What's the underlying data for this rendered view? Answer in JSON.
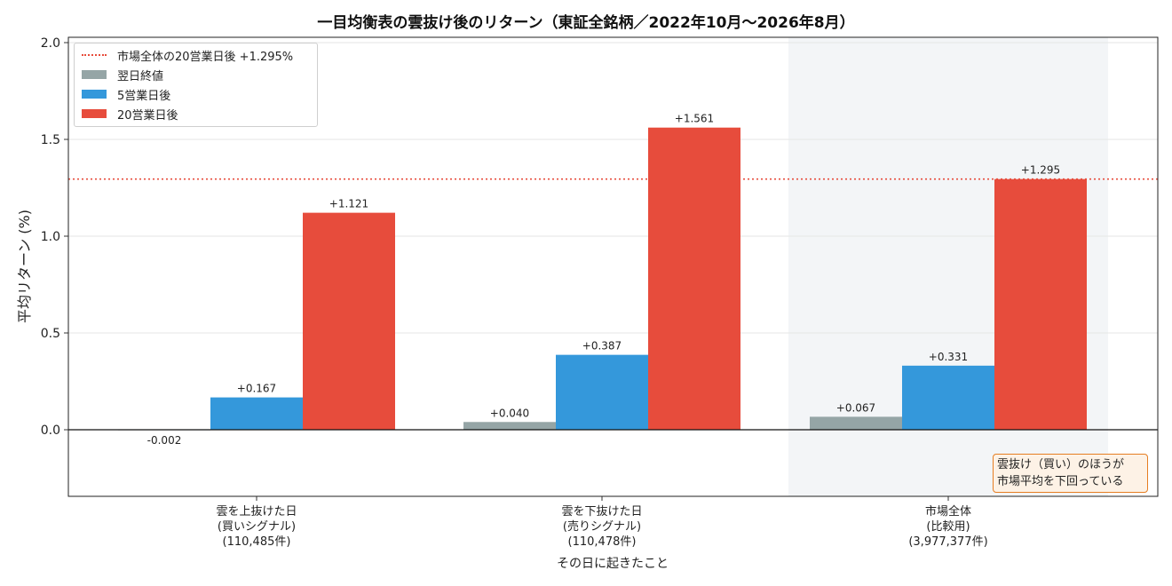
{
  "chart_data": {
    "type": "bar",
    "title": "一目均衡表の雲抜け後のリターン（東証全銘柄／2022年10月～2026年8月）",
    "xlabel": "その日に起きたこと",
    "ylabel": "平均リターン (%)",
    "ylim": [
      -0.35,
      2.02
    ],
    "yticks": [
      "0.0",
      "0.5",
      "1.0",
      "1.5",
      "2.0"
    ],
    "ytick_values": [
      0.0,
      0.5,
      1.0,
      1.5,
      2.0
    ],
    "grid": true,
    "legend_position": "top-left",
    "categories": [
      [
        "雲を上抜けた日",
        "(買いシグナル)",
        "(110,485件)"
      ],
      [
        "雲を下抜けた日",
        "(売りシグナル)",
        "(110,478件)"
      ],
      [
        "市場全体",
        "(比較用)",
        "(3,977,377件)"
      ]
    ],
    "highlight_category": 2,
    "series": [
      {
        "name": "翌日終値",
        "color": "#95a5a6",
        "values": [
          -0.002,
          0.04,
          0.067
        ],
        "labels": [
          "-0.002",
          "+0.040",
          "+0.067"
        ]
      },
      {
        "name": "5営業日後",
        "color": "#3498db",
        "values": [
          0.167,
          0.387,
          0.331
        ],
        "labels": [
          "+0.167",
          "+0.387",
          "+0.331"
        ]
      },
      {
        "name": "20営業日後",
        "color": "#e74c3c",
        "values": [
          1.121,
          1.561,
          1.295
        ],
        "labels": [
          "+1.121",
          "+1.561",
          "+1.295"
        ]
      }
    ],
    "reference_line": {
      "name": "市場全体の20営業日後 +1.295%",
      "value": 1.295,
      "color": "#e74c3c",
      "style": "dotted"
    },
    "annotation": {
      "lines": [
        "雲抜け（買い）のほうが",
        "市場平均を下回っている"
      ],
      "position": "bottom-right",
      "border_color": "#e67e22",
      "fill_color": "#fdf2e6"
    }
  }
}
